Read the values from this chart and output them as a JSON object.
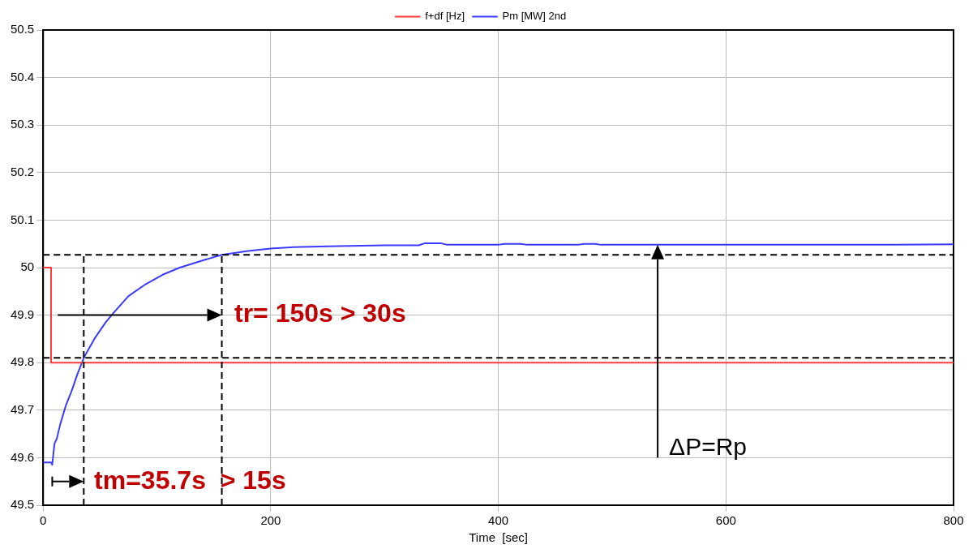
{
  "chart_data": {
    "type": "line",
    "xlabel": "Time  [sec]",
    "xlim": [
      0,
      800
    ],
    "xticks": [
      0,
      200,
      400,
      600,
      800
    ],
    "ylim": [
      49.5,
      50.5
    ],
    "yticks": [
      49.5,
      49.6,
      49.7,
      49.8,
      49.9,
      50,
      50.1,
      50.2,
      50.3,
      50.4,
      50.5
    ],
    "grid": true,
    "legend": "top",
    "marker": "none",
    "line_style": "solid",
    "series": [
      {
        "name": "f+df [Hz]",
        "color": "#ff3b3b",
        "x": [
          0,
          7,
          7,
          800
        ],
        "values": [
          50,
          50,
          49.8,
          49.8
        ]
      },
      {
        "name": "Pm [MW] 2nd",
        "color": "#3b3bff",
        "x": [
          0,
          7,
          8,
          10,
          12,
          15,
          20,
          25,
          30,
          35.7,
          45,
          55,
          62,
          75,
          90,
          105,
          120,
          140,
          157,
          180,
          200,
          220,
          250,
          300,
          330,
          335,
          350,
          355,
          400,
          405,
          420,
          425,
          470,
          475,
          485,
          490,
          750,
          800
        ],
        "values": [
          49.59,
          49.59,
          49.585,
          49.63,
          49.64,
          49.67,
          49.71,
          49.74,
          49.775,
          49.81,
          49.85,
          49.885,
          49.905,
          49.94,
          49.965,
          49.985,
          50.0,
          50.015,
          50.027,
          50.035,
          50.04,
          50.043,
          50.045,
          50.047,
          50.047,
          50.051,
          50.051,
          50.048,
          50.048,
          50.05,
          50.05,
          50.048,
          50.048,
          50.05,
          50.05,
          50.048,
          50.048,
          50.049
        ]
      }
    ],
    "ref_lines": [
      {
        "axis": "y",
        "value": 50.027,
        "line_style": "dashed",
        "color": "#000000"
      },
      {
        "axis": "y",
        "value": 49.81,
        "line_style": "dashed",
        "color": "#000000"
      },
      {
        "axis": "x",
        "value": 35.7,
        "line_style": "dashed",
        "color": "#000000"
      },
      {
        "axis": "x",
        "value": 157,
        "line_style": "dashed",
        "color": "#000000"
      }
    ],
    "annotations": [
      "tr= 150s > 30s",
      "tm=35.7s  > 15s",
      "ΔP=Rp"
    ]
  }
}
